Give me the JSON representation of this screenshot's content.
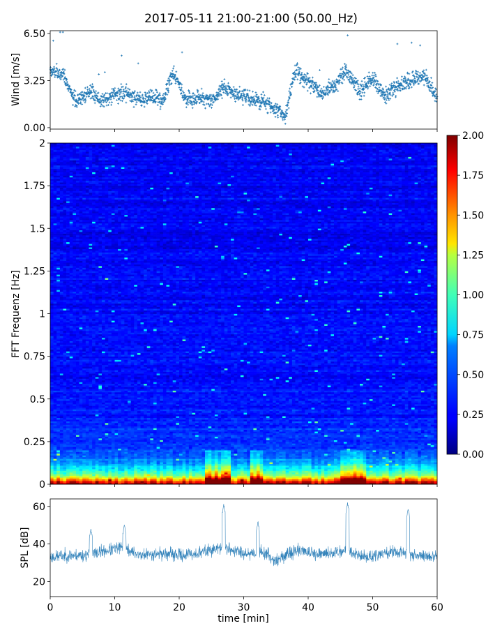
{
  "figure": {
    "title": "2017-05-11 21:00-21:00 (50.00_Hz)"
  },
  "chart_data": [
    {
      "id": "wind",
      "type": "scatter",
      "ylabel": "Wind [m/s]",
      "xlabel": "",
      "xlim": [
        0,
        60
      ],
      "ylim": [
        -0.1,
        6.7
      ],
      "y_ticks": [
        0.0,
        3.25,
        6.5
      ],
      "y_tick_labels": [
        "0.00",
        "3.25",
        "6.50"
      ],
      "x_tick_labels_visible": false,
      "color": "#1f77b4",
      "marker": "+",
      "trend": {
        "x": [
          0,
          2,
          4,
          6,
          8,
          10,
          12,
          14,
          16,
          17.5,
          19,
          21,
          23,
          25,
          27,
          29,
          31,
          33,
          35,
          36.5,
          38,
          40,
          42,
          44,
          46,
          48,
          50,
          52,
          54,
          56,
          58,
          60
        ],
        "y": [
          3.9,
          3.7,
          1.8,
          2.5,
          1.9,
          2.3,
          2.4,
          1.9,
          2.2,
          1.8,
          3.9,
          1.9,
          2.1,
          1.8,
          2.8,
          2.3,
          2.0,
          1.8,
          1.2,
          0.9,
          3.9,
          3.2,
          2.3,
          2.9,
          3.9,
          2.5,
          3.4,
          2.2,
          2.9,
          3.3,
          3.6,
          2.1
        ]
      },
      "spread": 0.8,
      "n_points": 1800
    },
    {
      "id": "spectrogram",
      "type": "heatmap",
      "ylabel": "FFT Frequenz [Hz]",
      "xlabel": "",
      "xlim": [
        0,
        60
      ],
      "ylim": [
        0,
        2
      ],
      "y_tick_labels": [
        "0",
        "0.25",
        "0.5",
        "0.75",
        "1",
        "1.25",
        "1.5",
        "1.75",
        "2"
      ],
      "x_tick_labels_visible": false,
      "colormap": "jet",
      "color_range": [
        0.0,
        2.0
      ],
      "colorbar_tick_labels": [
        "0.00",
        "0.25",
        "0.50",
        "0.75",
        "1.00",
        "1.25",
        "1.50",
        "1.75",
        "2.00"
      ],
      "time_bins": 120,
      "freq_bins": 200,
      "low_freq_profile": {
        "freq_hz": [
          0.0,
          0.02,
          0.05,
          0.1,
          0.15,
          0.25,
          0.4,
          0.6,
          2.0
        ],
        "level": [
          2.0,
          1.6,
          1.0,
          0.65,
          0.45,
          0.35,
          0.3,
          0.27,
          0.22
        ]
      },
      "high_activity_minutes": [
        [
          24,
          28
        ],
        [
          31,
          33
        ],
        [
          45,
          49
        ]
      ]
    },
    {
      "id": "spl",
      "type": "line",
      "ylabel": "SPL [dB]",
      "xlabel": "time [min]",
      "xlim": [
        0,
        60
      ],
      "ylim": [
        12,
        64
      ],
      "y_tick_labels": [
        "20",
        "40",
        "60"
      ],
      "x_tick_labels": [
        "0",
        "10",
        "20",
        "30",
        "40",
        "50",
        "60"
      ],
      "color": "#1f77b4",
      "trend": {
        "x": [
          0,
          3,
          6,
          8,
          11,
          14,
          17,
          20,
          23,
          25,
          27,
          29,
          31,
          33,
          35,
          37,
          39,
          41,
          43,
          45,
          46,
          47,
          49,
          51,
          53,
          55,
          57,
          60
        ],
        "y": [
          33,
          34,
          34,
          36,
          38,
          34,
          35,
          34,
          35,
          37,
          38,
          36,
          35,
          36,
          31,
          35,
          37,
          34,
          35,
          36,
          37,
          35,
          33,
          34,
          36,
          35,
          34,
          33
        ]
      },
      "noise_amplitude": 5,
      "peaks": [
        {
          "x": 6.3,
          "y": 48
        },
        {
          "x": 11.5,
          "y": 50
        },
        {
          "x": 26.9,
          "y": 61
        },
        {
          "x": 32.2,
          "y": 52
        },
        {
          "x": 46.1,
          "y": 62
        },
        {
          "x": 55.5,
          "y": 59
        }
      ]
    }
  ]
}
